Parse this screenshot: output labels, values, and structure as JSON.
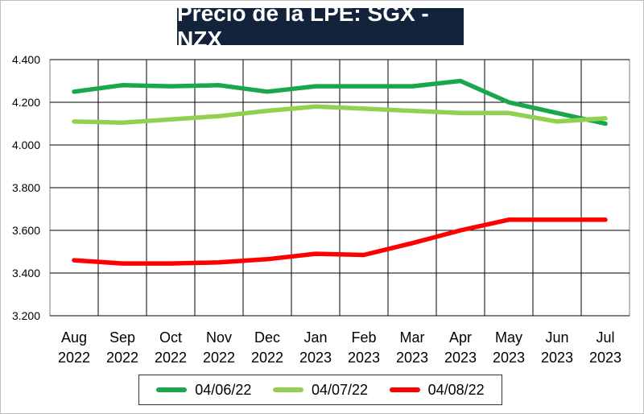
{
  "chart_data": {
    "type": "line",
    "title": "Precio de la LPE: SGX - NZX",
    "xlabel": "",
    "ylabel": "",
    "ylim": [
      3200,
      4400
    ],
    "yticks": [
      3200,
      3400,
      3600,
      3800,
      4000,
      4200,
      4400
    ],
    "ytick_labels": [
      "3.200",
      "3.400",
      "3.600",
      "3.800",
      "4.000",
      "4.200",
      "4.400"
    ],
    "categories": [
      [
        "Aug",
        "2022"
      ],
      [
        "Sep",
        "2022"
      ],
      [
        "Oct",
        "2022"
      ],
      [
        "Nov",
        "2022"
      ],
      [
        "Dec",
        "2022"
      ],
      [
        "Jan",
        "2023"
      ],
      [
        "Feb",
        "2023"
      ],
      [
        "Mar",
        "2023"
      ],
      [
        "Apr",
        "2023"
      ],
      [
        "May",
        "2023"
      ],
      [
        "Jun",
        "2023"
      ],
      [
        "Jul",
        "2023"
      ]
    ],
    "grid": true,
    "legend_position": "bottom",
    "series": [
      {
        "name": "04/06/22",
        "color": "#1aa64b",
        "values": [
          4250,
          4280,
          4275,
          4280,
          4250,
          4275,
          4275,
          4275,
          4300,
          4200,
          4150,
          4100
        ]
      },
      {
        "name": "04/07/22",
        "color": "#92d050",
        "values": [
          4110,
          4105,
          4120,
          4135,
          4160,
          4180,
          4170,
          4160,
          4150,
          4150,
          4110,
          4125
        ]
      },
      {
        "name": "04/08/22",
        "color": "#ff0000",
        "values": [
          3460,
          3445,
          3445,
          3450,
          3465,
          3490,
          3485,
          3540,
          3600,
          3650,
          3650,
          3650
        ]
      }
    ]
  }
}
